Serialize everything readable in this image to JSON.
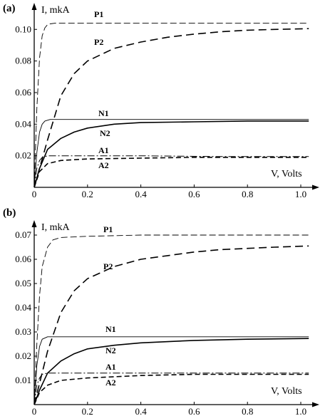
{
  "chart_data": [
    {
      "type": "line",
      "panel_label": "(a)",
      "xlabel": "V, Volts",
      "ylabel": "I, mkA",
      "xlim": [
        0,
        1.05
      ],
      "ylim": [
        0,
        0.115
      ],
      "x_ticks": [
        0,
        0.2,
        0.4,
        0.6,
        0.8,
        1.0
      ],
      "x_tick_labels": [
        "0",
        "0.2",
        "0.4",
        "0.6",
        "0.8",
        "1.0"
      ],
      "y_ticks": [
        0.02,
        0.04,
        0.06,
        0.08,
        0.1
      ],
      "y_tick_labels": [
        "0.02",
        "0.04",
        "0.06",
        "0.08",
        "0.10"
      ],
      "grid": false,
      "series": [
        {
          "name": "P1",
          "style": "thin-dashed",
          "x": [
            0,
            0.01,
            0.02,
            0.03,
            0.04,
            0.05,
            0.06,
            0.08,
            0.1,
            0.2,
            0.4,
            0.6,
            0.8,
            1.03
          ],
          "y": [
            0,
            0.05,
            0.082,
            0.096,
            0.101,
            0.103,
            0.1035,
            0.104,
            0.104,
            0.104,
            0.104,
            0.104,
            0.104,
            0.104
          ]
        },
        {
          "name": "P2",
          "style": "long-dashed",
          "x": [
            0,
            0.05,
            0.1,
            0.15,
            0.2,
            0.3,
            0.4,
            0.5,
            0.6,
            0.7,
            0.8,
            0.9,
            1.03
          ],
          "y": [
            0,
            0.03,
            0.058,
            0.072,
            0.08,
            0.088,
            0.092,
            0.095,
            0.097,
            0.0985,
            0.0995,
            0.1,
            0.1005
          ]
        },
        {
          "name": "N1",
          "style": "thin-solid",
          "x": [
            0,
            0.01,
            0.02,
            0.03,
            0.04,
            0.06,
            0.1,
            0.3,
            0.6,
            1.03
          ],
          "y": [
            0,
            0.022,
            0.035,
            0.04,
            0.042,
            0.043,
            0.043,
            0.043,
            0.043,
            0.043
          ]
        },
        {
          "name": "N2",
          "style": "thick-solid",
          "x": [
            0,
            0.02,
            0.05,
            0.1,
            0.15,
            0.2,
            0.3,
            0.4,
            0.6,
            0.8,
            1.03
          ],
          "y": [
            0,
            0.012,
            0.024,
            0.031,
            0.035,
            0.0375,
            0.04,
            0.041,
            0.0415,
            0.042,
            0.042
          ]
        },
        {
          "name": "A1",
          "style": "dash-dot",
          "x": [
            0,
            0.01,
            0.02,
            0.03,
            0.05,
            0.1,
            0.4,
            0.7,
            1.03
          ],
          "y": [
            0,
            0.012,
            0.017,
            0.019,
            0.02,
            0.02,
            0.02,
            0.0195,
            0.0195
          ]
        },
        {
          "name": "A2",
          "style": "thick-dashed",
          "x": [
            0,
            0.02,
            0.05,
            0.1,
            0.2,
            0.4,
            0.6,
            0.8,
            1.03
          ],
          "y": [
            0,
            0.01,
            0.015,
            0.017,
            0.018,
            0.0185,
            0.019,
            0.019,
            0.019
          ]
        }
      ]
    },
    {
      "type": "line",
      "panel_label": "(b)",
      "xlabel": "V, Volts",
      "ylabel": "I, mkA",
      "xlim": [
        0,
        1.05
      ],
      "ylim": [
        0,
        0.075
      ],
      "x_ticks": [
        0,
        0.2,
        0.4,
        0.6,
        0.8,
        1.0
      ],
      "x_tick_labels": [
        "0",
        "0.2",
        "0.4",
        "0.6",
        "0.8",
        "1.0"
      ],
      "y_ticks": [
        0.01,
        0.02,
        0.03,
        0.04,
        0.05,
        0.06,
        0.07
      ],
      "y_tick_labels": [
        "0.01",
        "0.02",
        "0.03",
        "0.04",
        "0.05",
        "0.06",
        "0.07"
      ],
      "grid": false,
      "series": [
        {
          "name": "P1",
          "style": "thin-dashed",
          "x": [
            0,
            0.01,
            0.02,
            0.03,
            0.05,
            0.07,
            0.1,
            0.2,
            0.4,
            0.6,
            0.8,
            1.03
          ],
          "y": [
            0,
            0.025,
            0.045,
            0.057,
            0.065,
            0.068,
            0.069,
            0.0695,
            0.07,
            0.07,
            0.07,
            0.07
          ]
        },
        {
          "name": "P2",
          "style": "long-dashed",
          "x": [
            0,
            0.05,
            0.1,
            0.15,
            0.2,
            0.3,
            0.4,
            0.5,
            0.6,
            0.7,
            0.8,
            0.9,
            1.03
          ],
          "y": [
            0,
            0.022,
            0.038,
            0.047,
            0.052,
            0.057,
            0.06,
            0.0615,
            0.063,
            0.064,
            0.0645,
            0.065,
            0.0655
          ]
        },
        {
          "name": "N1",
          "style": "thin-solid",
          "x": [
            0,
            0.01,
            0.02,
            0.03,
            0.05,
            0.08,
            0.2,
            0.5,
            1.03
          ],
          "y": [
            0,
            0.016,
            0.024,
            0.027,
            0.028,
            0.028,
            0.028,
            0.028,
            0.028
          ]
        },
        {
          "name": "N2",
          "style": "thick-solid",
          "x": [
            0,
            0.02,
            0.05,
            0.1,
            0.15,
            0.2,
            0.3,
            0.4,
            0.6,
            0.8,
            1.03
          ],
          "y": [
            0,
            0.006,
            0.013,
            0.018,
            0.021,
            0.023,
            0.0245,
            0.0255,
            0.0265,
            0.027,
            0.0273
          ]
        },
        {
          "name": "A1",
          "style": "dash-dot",
          "x": [
            0,
            0.01,
            0.02,
            0.03,
            0.05,
            0.1,
            0.5,
            1.03
          ],
          "y": [
            0,
            0.008,
            0.011,
            0.0125,
            0.013,
            0.013,
            0.013,
            0.013
          ]
        },
        {
          "name": "A2",
          "style": "thick-dashed",
          "x": [
            0,
            0.02,
            0.05,
            0.1,
            0.2,
            0.4,
            0.6,
            0.8,
            1.03
          ],
          "y": [
            0,
            0.005,
            0.008,
            0.01,
            0.011,
            0.012,
            0.0125,
            0.0125,
            0.0125
          ]
        }
      ]
    }
  ]
}
